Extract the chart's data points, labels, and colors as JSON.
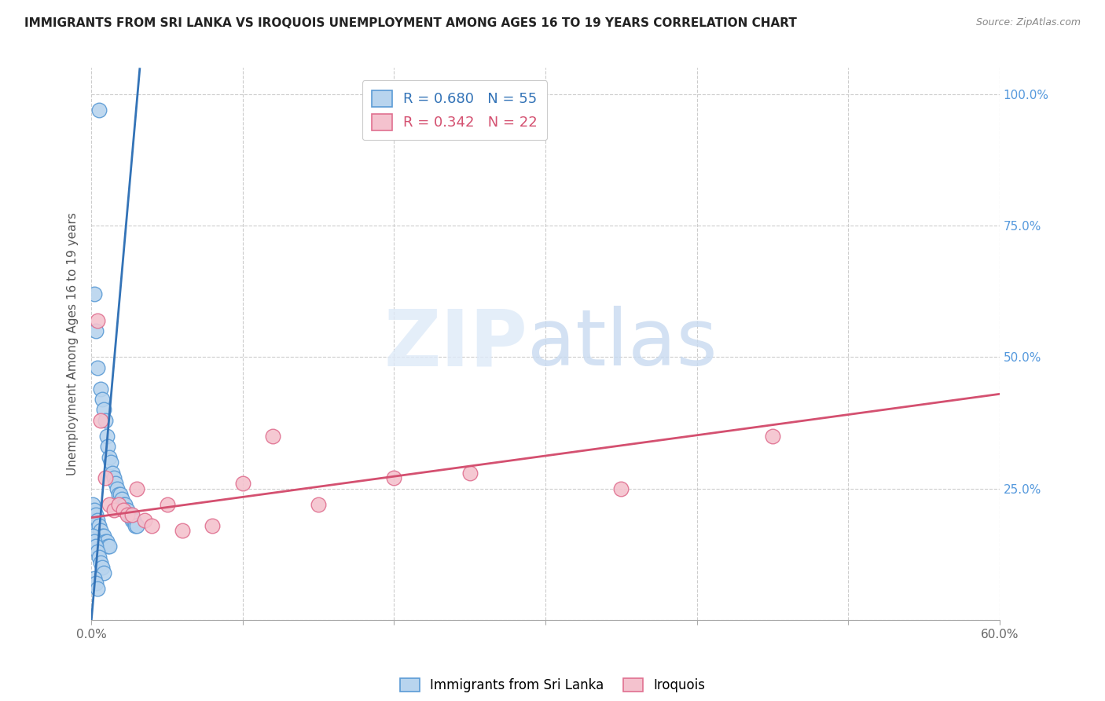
{
  "title": "IMMIGRANTS FROM SRI LANKA VS IROQUOIS UNEMPLOYMENT AMONG AGES 16 TO 19 YEARS CORRELATION CHART",
  "source": "Source: ZipAtlas.com",
  "ylabel": "Unemployment Among Ages 16 to 19 years",
  "xmin": 0.0,
  "xmax": 0.6,
  "ymin": 0.0,
  "ymax": 1.05,
  "x_tick_positions": [
    0.0,
    0.1,
    0.2,
    0.3,
    0.4,
    0.5,
    0.6
  ],
  "x_tick_labels": [
    "0.0%",
    "",
    "",
    "",
    "",
    "",
    "60.0%"
  ],
  "y_tick_positions": [
    0.0,
    0.25,
    0.5,
    0.75,
    1.0
  ],
  "y_tick_labels_right": [
    "",
    "25.0%",
    "50.0%",
    "75.0%",
    "100.0%"
  ],
  "series1_label": "Immigrants from Sri Lanka",
  "series1_face_color": "#b8d4ee",
  "series1_edge_color": "#5b9bd5",
  "series1_line_color": "#3373b7",
  "series1_R": 0.68,
  "series1_N": 55,
  "series2_label": "Iroquois",
  "series2_face_color": "#f4c2ce",
  "series2_edge_color": "#e07090",
  "series2_line_color": "#d45070",
  "series2_R": 0.342,
  "series2_N": 22,
  "s1_x": [
    0.005,
    0.002,
    0.003,
    0.004,
    0.006,
    0.007,
    0.008,
    0.009,
    0.01,
    0.011,
    0.012,
    0.013,
    0.014,
    0.015,
    0.016,
    0.017,
    0.018,
    0.019,
    0.02,
    0.021,
    0.022,
    0.023,
    0.024,
    0.025,
    0.026,
    0.027,
    0.028,
    0.029,
    0.03,
    0.001,
    0.001,
    0.002,
    0.002,
    0.003,
    0.003,
    0.004,
    0.005,
    0.006,
    0.007,
    0.008,
    0.009,
    0.01,
    0.011,
    0.012,
    0.001,
    0.002,
    0.003,
    0.004,
    0.005,
    0.006,
    0.007,
    0.008,
    0.002,
    0.003,
    0.004
  ],
  "s1_y": [
    0.97,
    0.62,
    0.55,
    0.48,
    0.44,
    0.42,
    0.4,
    0.38,
    0.35,
    0.33,
    0.31,
    0.3,
    0.28,
    0.27,
    0.26,
    0.25,
    0.24,
    0.24,
    0.23,
    0.22,
    0.22,
    0.21,
    0.21,
    0.2,
    0.2,
    0.19,
    0.19,
    0.18,
    0.18,
    0.22,
    0.2,
    0.21,
    0.19,
    0.2,
    0.18,
    0.19,
    0.18,
    0.17,
    0.16,
    0.16,
    0.15,
    0.15,
    0.14,
    0.14,
    0.16,
    0.15,
    0.14,
    0.13,
    0.12,
    0.11,
    0.1,
    0.09,
    0.08,
    0.07,
    0.06
  ],
  "s2_x": [
    0.006,
    0.009,
    0.012,
    0.015,
    0.018,
    0.021,
    0.024,
    0.027,
    0.03,
    0.035,
    0.04,
    0.05,
    0.06,
    0.08,
    0.1,
    0.12,
    0.15,
    0.2,
    0.25,
    0.35,
    0.45,
    0.004
  ],
  "s2_y": [
    0.38,
    0.27,
    0.22,
    0.21,
    0.22,
    0.21,
    0.2,
    0.2,
    0.25,
    0.19,
    0.18,
    0.22,
    0.17,
    0.18,
    0.26,
    0.35,
    0.22,
    0.27,
    0.28,
    0.25,
    0.35,
    0.57
  ],
  "s1_line_x": [
    0.0,
    0.032
  ],
  "s1_line_y": [
    0.0,
    1.05
  ],
  "s2_line_x": [
    0.0,
    0.6
  ],
  "s2_line_y": [
    0.195,
    0.43
  ]
}
